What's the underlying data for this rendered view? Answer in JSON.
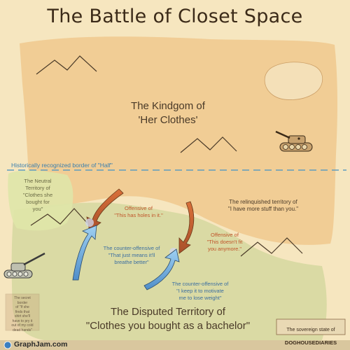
{
  "title": "The Battle of Closet Space",
  "regions": {
    "her_clothes": "The Kindgom of\n'Her Clothes'",
    "disputed": "The Disputed Territory of\n\"Clothes you bought as a bachelor\"",
    "neutral": "The Neutral\nTerritory of\n\"Clothes she\nbought for\nyou\"",
    "relinquished": "The relinquished territory of\n\"I have more stuff than you.\"",
    "secret": "The secret\nborder\nof \"If she\nfinds that\nshirt she'll\nhave to pry it\nout of my cold\ndead hands\""
  },
  "border_label": "Historically recognized border of \"Half\"",
  "offensives": [
    {
      "label": "Offensive of\n\"This has holes in it.\""
    },
    {
      "label": "Offensive of\n\"This doesn't fit\nyou anymore.\""
    }
  ],
  "counter_offensives": [
    {
      "label": "The counter-offensive of\n\"That just means it'll\nbreathe better\""
    },
    {
      "label": "The counter-offensive of\n\"I keep it to motivate\nme to lose weight\""
    }
  ],
  "stamp": {
    "line1": "The sovereign state of",
    "line2": "DOGHOUSEDIARIES"
  },
  "footer": {
    "brand": "GraphJam.com",
    "brand_color": "#2a2a2a"
  },
  "icons": [
    "tank-icon",
    "tank-icon",
    "mountain-icon",
    "globe-icon"
  ],
  "colors": {
    "background": "#f6e6bf",
    "her_territory": "#efc487",
    "disputed_territory": "#cfd69a",
    "neutral_territory": "#dfe6a8",
    "border_line": "#5f9bbf",
    "offensive_arrow": "#c9663a",
    "counter_arrow": "#6aa8d8"
  }
}
